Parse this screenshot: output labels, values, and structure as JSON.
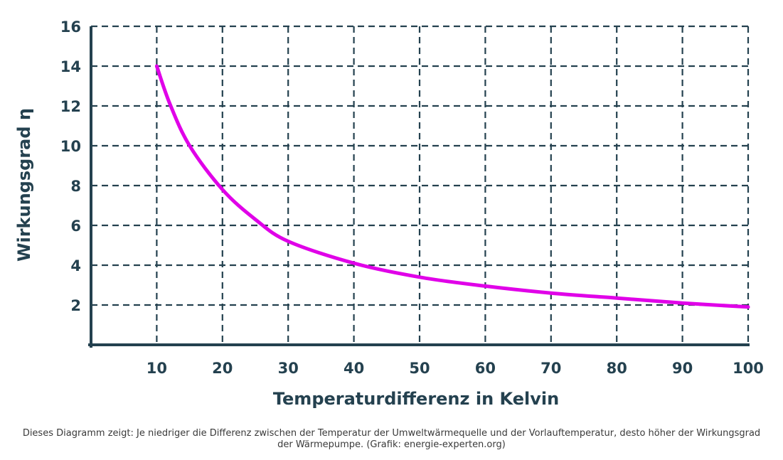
{
  "chart_data": {
    "type": "line",
    "xlabel": "Temperaturdifferenz in Kelvin",
    "ylabel": "Wirkungsgrad η",
    "xlim": [
      0,
      100
    ],
    "ylim": [
      0,
      16
    ],
    "x_ticks": [
      "10",
      "20",
      "30",
      "40",
      "50",
      "60",
      "70",
      "80",
      "90",
      "100"
    ],
    "y_ticks": [
      "2",
      "4",
      "6",
      "8",
      "10",
      "12",
      "14",
      "16"
    ],
    "grid": true,
    "grid_style": "dashed",
    "series": [
      {
        "color": "#e000e8",
        "x": [
          10,
          12,
          15,
          20,
          25,
          30,
          40,
          50,
          60,
          70,
          80,
          90,
          100
        ],
        "y": [
          14,
          12.1,
          10.0,
          7.8,
          6.3,
          5.2,
          4.1,
          3.4,
          2.95,
          2.6,
          2.35,
          2.1,
          1.9
        ]
      }
    ]
  },
  "caption": "Dieses Diagramm zeigt: Je niedriger die Differenz zwischen der Temperatur der Umweltwärmequelle und der Vorlauftemperatur, desto höher der Wirkungsgrad der Wärmepumpe. (Grafik: energie-experten.org)",
  "colors": {
    "axis": "#24414f",
    "grid": "#24414f",
    "curve": "#e000e8"
  }
}
